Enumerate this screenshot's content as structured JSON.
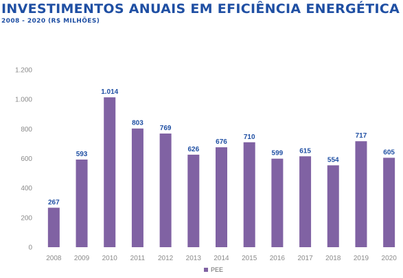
{
  "header": {
    "title": "INVESTIMENTOS ANUAIS EM EFICIÊNCIA ENERGÉTICA",
    "subtitle": "2008 - 2020 (R$ MILHÕES)"
  },
  "chart_data": {
    "type": "bar",
    "categories": [
      "2008",
      "2009",
      "2010",
      "2011",
      "2012",
      "2013",
      "2014",
      "2015",
      "2016",
      "2017",
      "2018",
      "2019",
      "2020"
    ],
    "series": [
      {
        "name": "PEE",
        "values": [
          267,
          593,
          1014,
          803,
          769,
          626,
          676,
          710,
          599,
          615,
          554,
          717,
          605
        ],
        "color": "#8062a3"
      }
    ],
    "data_labels": [
      "267",
      "593",
      "1.014",
      "803",
      "769",
      "626",
      "676",
      "710",
      "599",
      "615",
      "554",
      "717",
      "605"
    ],
    "ylim": [
      0,
      1200
    ],
    "yticks": [
      0,
      200,
      400,
      600,
      800,
      1000,
      1200
    ],
    "ytick_labels": [
      "0",
      "200",
      "400",
      "600",
      "800",
      "1.000",
      "1.200"
    ],
    "grid": false,
    "legend_position": "bottom-center",
    "title_color": "#1f4fa3",
    "label_color": "#1f4fa3"
  }
}
